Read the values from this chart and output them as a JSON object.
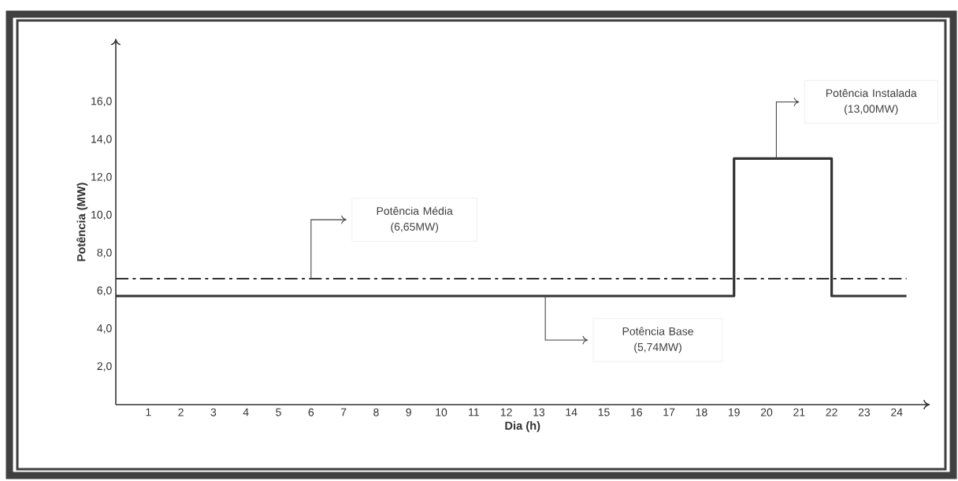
{
  "chart_data": {
    "type": "step",
    "xlabel": "Dia (h)",
    "ylabel": "Potência (MW)",
    "x": [
      0,
      19,
      22,
      24.3
    ],
    "series": [
      {
        "color": "#333333",
        "values": [
          5.74,
          13,
          5.74,
          5.74
        ]
      }
    ],
    "xlim": [
      0,
      25
    ],
    "ylim": [
      0,
      19.3
    ],
    "xticks": [
      1,
      2,
      3,
      4,
      5,
      6,
      7,
      8,
      9,
      10,
      11,
      12,
      13,
      14,
      15,
      16,
      17,
      18,
      19,
      20,
      21,
      22,
      23,
      24
    ],
    "yticks": [
      {
        "value": 2,
        "label": "2,0"
      },
      {
        "value": 4,
        "label": "4,0"
      },
      {
        "value": 6,
        "label": "6,0"
      },
      {
        "value": 8,
        "label": "8,0"
      },
      {
        "value": 10,
        "label": "10,0"
      },
      {
        "value": 12,
        "label": "12,0"
      },
      {
        "value": 14,
        "label": "14,0"
      },
      {
        "value": 16,
        "label": "16,0"
      }
    ],
    "ref_lines": [
      {
        "axis": "y",
        "value": 6.65,
        "color": "#333333",
        "line_style": "dashed"
      }
    ],
    "annotations": [
      "Potência Média (6,65MW)",
      "Potência Base (5,74MW)",
      "Potência Instalada (13,00MW)"
    ],
    "grid": false
  }
}
